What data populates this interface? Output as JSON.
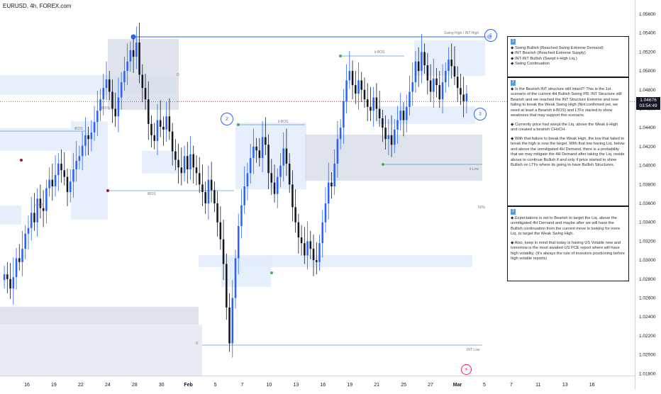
{
  "header": {
    "symbol": "EURUSD, 4h, FOREX.com"
  },
  "price_tag": {
    "price": "1.04676",
    "countdown": "03:54:49"
  },
  "chart_data": {
    "type": "candlestick",
    "title": "EURUSD, 4h, FOREX.com",
    "y_ticks": [
      1.056,
      1.054,
      1.052,
      1.05,
      1.048,
      1.046,
      1.044,
      1.042,
      1.04,
      1.038,
      1.036,
      1.034,
      1.032,
      1.03,
      1.028,
      1.026,
      1.024,
      1.022,
      1.02,
      1.018
    ],
    "y_tick_labels": [
      "1.05600",
      "1.05400",
      "1.05200",
      "1.05000",
      "1.04800",
      "1.04600",
      "1.04400",
      "1.04200",
      "1.04000",
      "1.03800",
      "1.03600",
      "1.03400",
      "1.03200",
      "1.03000",
      "1.02800",
      "1.02600",
      "1.02400",
      "1.02200",
      "1.02000",
      "1.01800"
    ],
    "ylim": [
      1.0178,
      1.0575
    ],
    "x_ticks": [
      "16",
      "19",
      "22",
      "24",
      "28",
      "30",
      "Feb",
      "5",
      "7",
      "10",
      "13",
      "16",
      "19",
      "21",
      "25",
      "27",
      "Mar",
      "5",
      "7",
      "11",
      "13",
      "16"
    ],
    "last_price": 1.04676,
    "closes": [
      1.0285,
      1.028,
      1.027,
      1.0282,
      1.0302,
      1.0298,
      1.0312,
      1.0328,
      1.0334,
      1.035,
      1.034,
      1.0365,
      1.0355,
      1.0352,
      1.0376,
      1.0385,
      1.0378,
      1.039,
      1.0402,
      1.0395,
      1.0388,
      1.0372,
      1.0383,
      1.0396,
      1.0405,
      1.041,
      1.0421,
      1.0432,
      1.0428,
      1.0435,
      1.0446,
      1.0458,
      1.047,
      1.0482,
      1.0491,
      1.0478,
      1.046,
      1.0452,
      1.0472,
      1.0488,
      1.05,
      1.051,
      1.0522,
      1.0515,
      1.053,
      1.0496,
      1.0482,
      1.047,
      1.0444,
      1.0432,
      1.0426,
      1.0448,
      1.0441,
      1.0438,
      1.0452,
      1.0436,
      1.0415,
      1.0406,
      1.0398,
      1.0392,
      1.041,
      1.0396,
      1.0412,
      1.0398,
      1.0392,
      1.038,
      1.0372,
      1.036,
      1.0385,
      1.0374,
      1.036,
      1.034,
      1.0322,
      1.0296,
      1.025,
      1.0212,
      1.026,
      1.0302,
      1.0336,
      1.0358,
      1.0378,
      1.0392,
      1.0408,
      1.042,
      1.0416,
      1.0408,
      1.043,
      1.0422,
      1.0392,
      1.0382,
      1.037,
      1.0388,
      1.04,
      1.0418,
      1.0402,
      1.038,
      1.0356,
      1.034,
      1.0324,
      1.0318,
      1.0305,
      1.032,
      1.0312,
      1.03,
      1.0298,
      1.0318,
      1.034,
      1.036,
      1.0382,
      1.0378,
      1.0402,
      1.0428,
      1.044,
      1.0468,
      1.049,
      1.05,
      1.0485,
      1.0476,
      1.049,
      1.048,
      1.047,
      1.0462,
      1.0458,
      1.0472,
      1.046,
      1.045,
      1.044,
      1.0428,
      1.0432,
      1.0422,
      1.0438,
      1.0448,
      1.0458,
      1.0448,
      1.0462,
      1.0478,
      1.0488,
      1.051,
      1.05,
      1.052,
      1.0506,
      1.049,
      1.0478,
      1.0492,
      1.0485,
      1.047,
      1.0488,
      1.05,
      1.0512,
      1.0505,
      1.0494,
      1.0482,
      1.0475,
      1.0468,
      1.0476
    ],
    "annotations": [
      "Swing High / INT High",
      "iBOS",
      "iBOS",
      "iBOS",
      "iBOS",
      "ii-BOS",
      "ii-BOS",
      "ii-Low",
      "INT Low",
      "50%",
      "D",
      "D"
    ]
  },
  "notes": {
    "box1": {
      "step": "1",
      "items": [
        "◆ Swing Bullish (Reached Swing Extreme Demand)",
        "◆ INT Bearish (Reached Extreme Supply)",
        "◆ INT-INT Bullish (Swept ii-High Liq.)",
        "◆ Swing Continuation"
      ]
    },
    "box2": {
      "step": "2",
      "paras": [
        "◆ Is the Bearish INT structure still intact?! This is the 1st scenario of the current 4H Bullish Swing PB. INT Structure still Bearish and we reached the INT Structure Extreme and now failing to break the Weak Swing High (Not confirmed yet, we need at least a Bearish ii-BOS) and LTFs started to show weakness that may support this scenario.",
        "◆ Currently price had swept the Liq. above the Weak ii-High and created a bearish CHoCH.",
        "◆ With that failure to break the Weak High, the low that failed to break the high is now the target. With that low having Liq. below and above the unmitigated 4H Demand, there is a probability that we may mitigate the 4H Demand after taking the Liq. reside above to continue Bullish if and only if price started to show Bullish on LTFs where its going to have Bullish Structures."
      ]
    },
    "box3": {
      "step": "3",
      "paras": [
        "◆ Expectations is set to Bearish to target the Liq. above the unmitigated 4H Demand and maybe after we will have the Bullish continuation from the current move is looking for more Liq. to target the Weak Swing High.",
        "◆ Also, keep in mind that today is having US Volatile new and tomorrow is the most awaited US PCE report where will have high volatility. (It's always the rule of investors positioning before high volatile reports)"
      ]
    }
  },
  "badges": {
    "b1": "1",
    "b2": "2",
    "b3": "3"
  },
  "colors": {
    "up": "#2962ff",
    "down": "#131722",
    "zone": "#e3ecfb",
    "zone_dark": "#d8dee9",
    "accent": "#2962ff"
  }
}
